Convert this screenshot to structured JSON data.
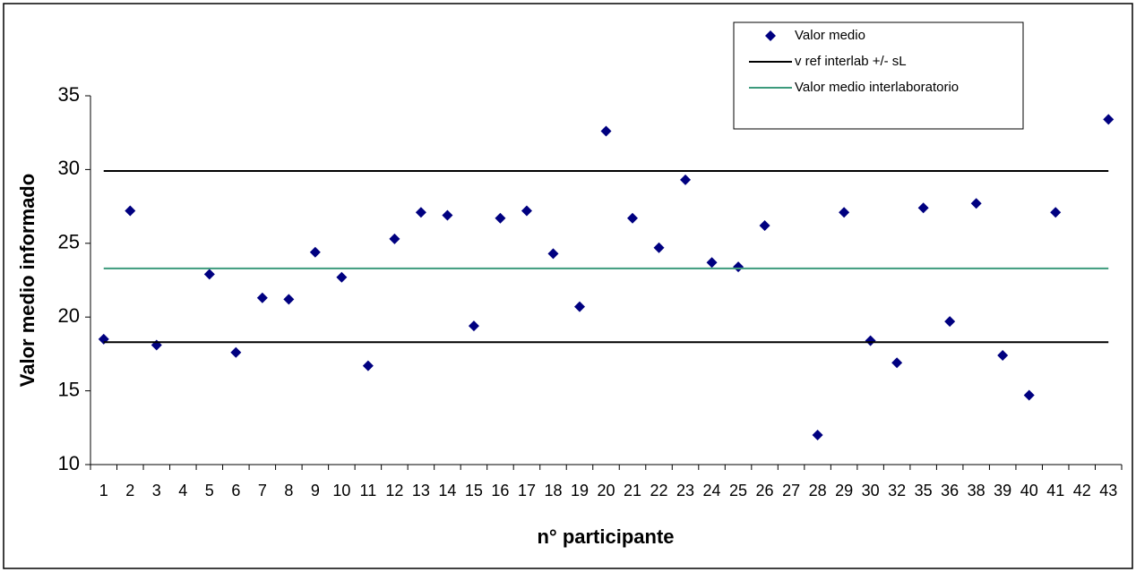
{
  "chart_data": {
    "type": "scatter",
    "y_label": "Valor medio informado",
    "x_label": "n° participante",
    "categories": [
      "1",
      "2",
      "3",
      "4",
      "5",
      "6",
      "7",
      "8",
      "9",
      "10",
      "11",
      "12",
      "13",
      "14",
      "15",
      "16",
      "17",
      "18",
      "19",
      "20",
      "21",
      "22",
      "23",
      "24",
      "25",
      "26",
      "27",
      "28",
      "29",
      "30",
      "32",
      "35",
      "36",
      "38",
      "39",
      "40",
      "41",
      "42",
      "43"
    ],
    "series": [
      {
        "name": "Valor medio",
        "color": "#000080",
        "values": [
          18.5,
          27.2,
          18.1,
          null,
          22.9,
          17.6,
          21.3,
          21.2,
          24.4,
          22.7,
          16.7,
          25.3,
          27.1,
          26.9,
          19.4,
          26.7,
          27.2,
          24.3,
          20.7,
          32.6,
          26.7,
          24.7,
          29.3,
          23.7,
          23.4,
          26.2,
          null,
          12.0,
          27.1,
          18.4,
          16.9,
          27.4,
          19.7,
          27.7,
          17.4,
          14.7,
          27.1,
          null,
          33.4
        ]
      },
      {
        "name": "v ref interlab +/- sL",
        "color": "#000000",
        "levels": [
          29.9,
          18.3
        ]
      },
      {
        "name": "Valor medio interlaboratorio",
        "color": "#3c9a7c",
        "levels": [
          23.3
        ]
      }
    ],
    "ylim": [
      10,
      35
    ],
    "yticks": [
      10,
      15,
      20,
      25,
      30,
      35
    ],
    "legend": "top-right"
  }
}
